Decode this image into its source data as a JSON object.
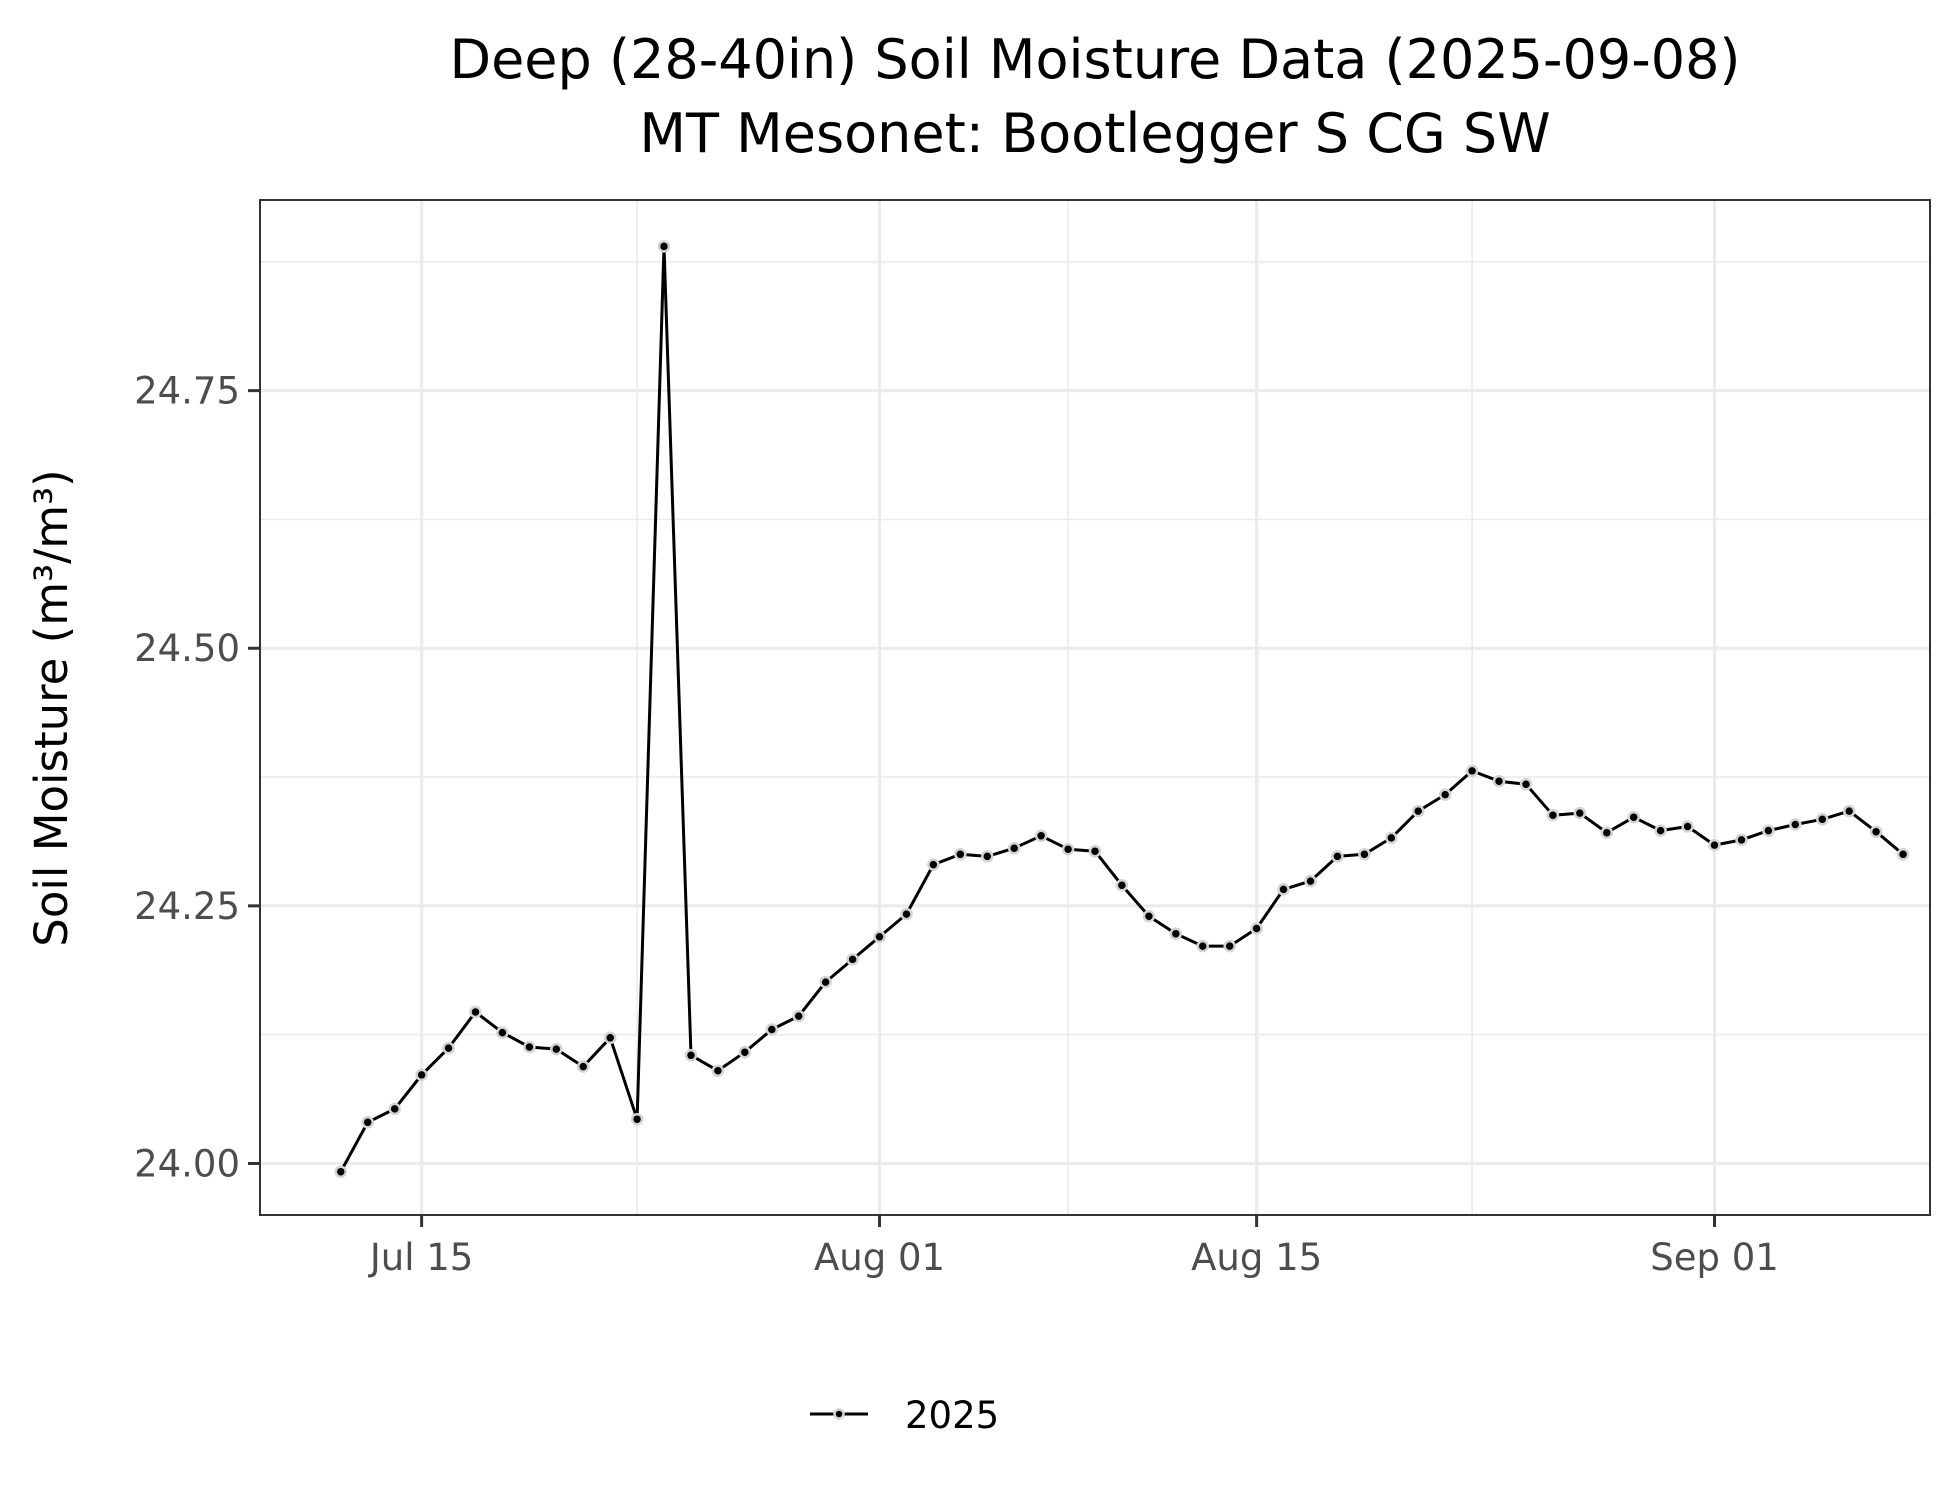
{
  "chart_data": {
    "type": "line",
    "title": "Deep (28-40in) Soil Moisture Data (2025-09-08)",
    "subtitle": "MT Mesonet: Bootlegger S CG SW",
    "xlabel": "",
    "ylabel": "Soil Moisture (m³/m³)",
    "xlim": [
      "2025-07-09",
      "2025-09-09"
    ],
    "ylim": [
      23.95,
      24.935
    ],
    "x_ticks": [
      {
        "date": "2025-07-15",
        "label": "Jul 15"
      },
      {
        "date": "2025-08-01",
        "label": "Aug 01"
      },
      {
        "date": "2025-08-15",
        "label": "Aug 15"
      },
      {
        "date": "2025-09-01",
        "label": "Sep 01"
      }
    ],
    "x_minor_ticks": [
      "2025-07-23",
      "2025-08-08",
      "2025-08-23",
      "2025-09-09"
    ],
    "y_ticks": [
      {
        "value": 24.0,
        "label": "24.00"
      },
      {
        "value": 24.25,
        "label": "24.25"
      },
      {
        "value": 24.5,
        "label": "24.50"
      },
      {
        "value": 24.75,
        "label": "24.75"
      }
    ],
    "y_minor_ticks": [
      24.125,
      24.375,
      24.625,
      24.875
    ],
    "grid": true,
    "legend": {
      "position": "bottom",
      "entries": [
        "2025"
      ]
    },
    "colors": {
      "line": "#000000",
      "point_fill": "#000000",
      "point_outline": "#d3d3d3"
    },
    "series": [
      {
        "name": "2025",
        "x": [
          "2025-07-12",
          "2025-07-13",
          "2025-07-14",
          "2025-07-15",
          "2025-07-16",
          "2025-07-17",
          "2025-07-18",
          "2025-07-19",
          "2025-07-20",
          "2025-07-21",
          "2025-07-22",
          "2025-07-23",
          "2025-07-24",
          "2025-07-25",
          "2025-07-26",
          "2025-07-27",
          "2025-07-28",
          "2025-07-29",
          "2025-07-30",
          "2025-07-31",
          "2025-08-01",
          "2025-08-02",
          "2025-08-03",
          "2025-08-04",
          "2025-08-05",
          "2025-08-06",
          "2025-08-07",
          "2025-08-08",
          "2025-08-09",
          "2025-08-10",
          "2025-08-11",
          "2025-08-12",
          "2025-08-13",
          "2025-08-14",
          "2025-08-15",
          "2025-08-16",
          "2025-08-17",
          "2025-08-18",
          "2025-08-19",
          "2025-08-20",
          "2025-08-21",
          "2025-08-22",
          "2025-08-23",
          "2025-08-24",
          "2025-08-25",
          "2025-08-26",
          "2025-08-27",
          "2025-08-28",
          "2025-08-29",
          "2025-08-30",
          "2025-08-31",
          "2025-09-01",
          "2025-09-02",
          "2025-09-03",
          "2025-09-04",
          "2025-09-05",
          "2025-09-06",
          "2025-09-07",
          "2025-09-08"
        ],
        "values": [
          23.992,
          24.04,
          24.053,
          24.086,
          24.112,
          24.147,
          24.127,
          24.113,
          24.111,
          24.094,
          24.122,
          24.043,
          24.89,
          24.105,
          24.09,
          24.108,
          24.13,
          24.143,
          24.176,
          24.198,
          24.22,
          24.242,
          24.29,
          24.3,
          24.298,
          24.306,
          24.318,
          24.305,
          24.303,
          24.27,
          24.24,
          24.223,
          24.211,
          24.211,
          24.228,
          24.266,
          24.274,
          24.298,
          24.3,
          24.316,
          24.342,
          24.358,
          24.381,
          24.371,
          24.368,
          24.338,
          24.34,
          24.321,
          24.336,
          24.323,
          24.327,
          24.309,
          24.314,
          24.323,
          24.329,
          24.334,
          24.342,
          24.322,
          24.3
        ]
      }
    ]
  }
}
